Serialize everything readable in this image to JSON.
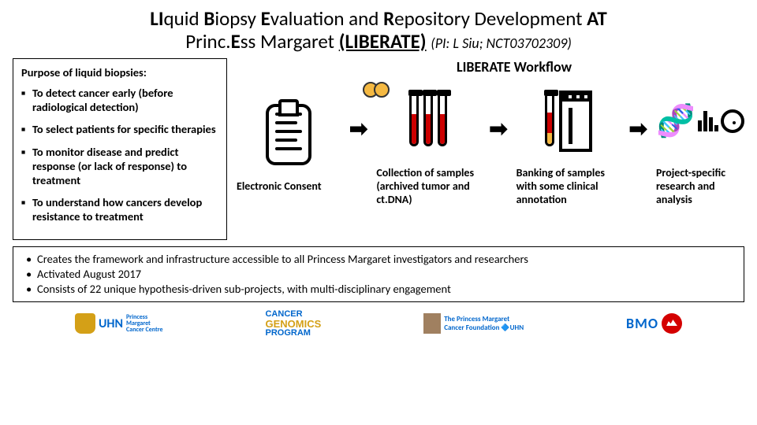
{
  "title": {
    "line1_html": "<b>LI</b>quid <b>B</b>iopsy <b>E</b>valuation and <b>R</b>epository Development <b>AT</b>",
    "line2_prefix": "Princ.",
    "line2_bold": "E",
    "line2_rest": "ss Margaret ",
    "acronym": "(LIBERATE)",
    "pi": "(PI: L Siu; NCT03702309)"
  },
  "purpose": {
    "header": "Purpose of liquid biopsies:",
    "items": [
      "To detect cancer early (before radiological detection)",
      "To select patients for specific therapies",
      "To monitor disease and predict response (or lack of response) to treatment",
      "To understand how cancers develop resistance to treatment"
    ]
  },
  "workflow": {
    "title": "LIBERATE Workflow",
    "steps": [
      {
        "caption": "Electronic Consent",
        "icon": "clipboard"
      },
      {
        "caption": "Collection of samples (archived tumor and ct.DNA)",
        "icon": "tubes"
      },
      {
        "caption": "Banking of samples with some clinical annotation",
        "icon": "freezer"
      },
      {
        "caption": "Project-specific research and analysis",
        "icon": "dna"
      }
    ],
    "arrow_glyph": "➡"
  },
  "bottom": {
    "items": [
      "Creates the framework and infrastructure accessible to all Princess Margaret investigators and researchers",
      "Activated August 2017",
      "Consists of 22 unique hypothesis-driven sub-projects, with multi-disciplinary engagement"
    ]
  },
  "logos": {
    "uhn": "UHN",
    "uhn_sub": "Princess\nMargaret\nCancer Centre",
    "cgp_top": "CANCER",
    "cgp_mid": "GENOMICS",
    "cgp_bot": "PROGRAM",
    "pmcf": "The Princess Margaret\nCancer Foundation 🔷UHN",
    "bmo": "BMO"
  },
  "colors": {
    "bg": "#ffffff",
    "text": "#000000",
    "tube_red": "#cc0000",
    "tube_yellow": "#f5b942",
    "uhn_gold": "#d4a017",
    "link_blue": "#0066cc",
    "bmo_red": "#d40000"
  }
}
